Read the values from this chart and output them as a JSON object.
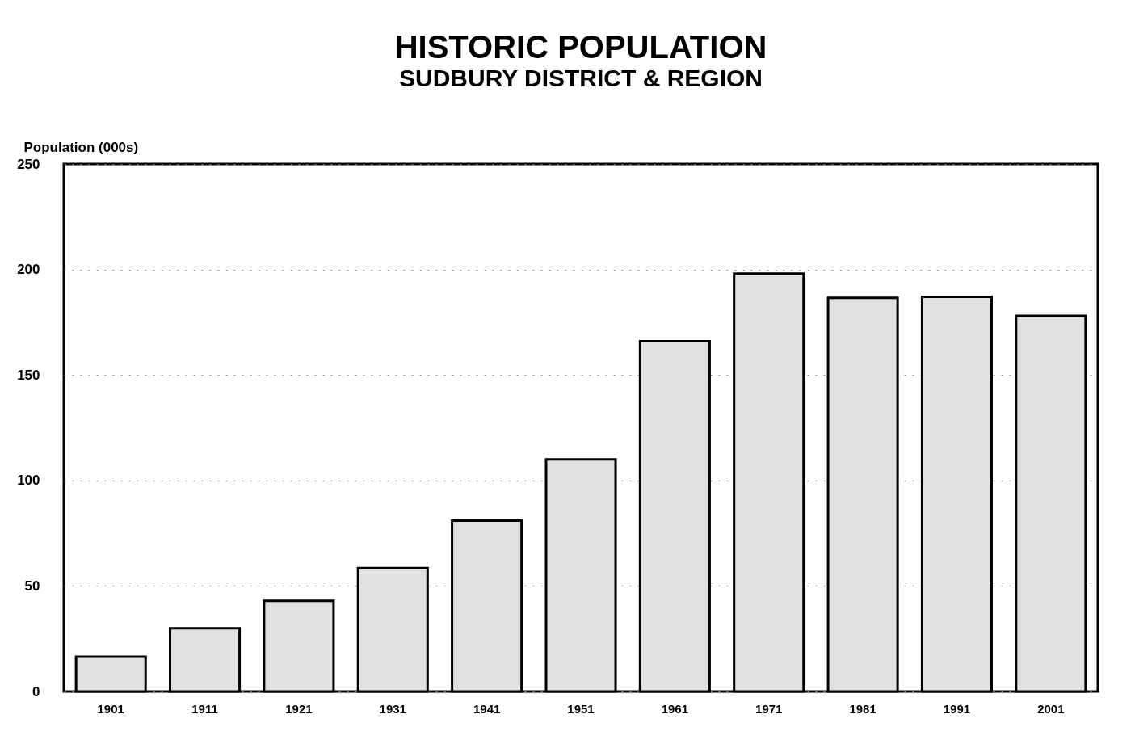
{
  "chart_data": {
    "type": "bar",
    "title": "HISTORIC POPULATION",
    "subtitle": "SUDBURY DISTRICT & REGION",
    "ylabel": "Population (000s)",
    "categories": [
      "1901",
      "1911",
      "1921",
      "1931",
      "1941",
      "1951",
      "1961",
      "1971",
      "1981",
      "1991",
      "2001"
    ],
    "values": [
      16.5,
      30,
      43,
      58.5,
      81,
      110,
      166,
      198,
      186.5,
      187,
      178
    ],
    "color": "#e0e0e0",
    "ylim": [
      0,
      250
    ],
    "yticks": [
      0,
      50,
      100,
      150,
      200,
      250
    ],
    "grid": "y"
  }
}
